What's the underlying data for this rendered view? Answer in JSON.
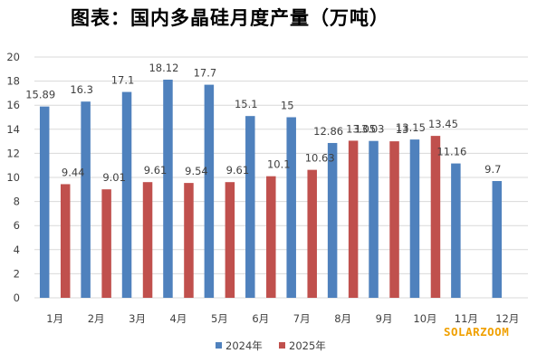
{
  "title": "图表：国内多晶硅月度产量（万吨）",
  "watermark": "SOLARZOOM",
  "colors": {
    "series_2024": "#4f81bd",
    "series_2025": "#c0504d",
    "grid": "#d9d9d9"
  },
  "chart_data": {
    "type": "bar",
    "title": "图表：国内多晶硅月度产量（万吨）",
    "xlabel": "",
    "ylabel": "",
    "categories": [
      "1月",
      "2月",
      "3月",
      "4月",
      "5月",
      "6月",
      "7月",
      "8月",
      "9月",
      "10月",
      "11月",
      "12月"
    ],
    "series": [
      {
        "name": "2024年",
        "values": [
          15.89,
          16.3,
          17.1,
          18.12,
          17.7,
          15.1,
          15,
          12.86,
          13.03,
          13.15,
          11.16,
          9.7
        ],
        "labels": [
          "15.89",
          "16.3",
          "17.1",
          "18.12",
          "17.7",
          "15.1",
          "15",
          "12.86",
          "13.03",
          "13.15",
          "11.16",
          "9.7"
        ]
      },
      {
        "name": "2025年",
        "values": [
          9.44,
          9.01,
          9.61,
          9.54,
          9.61,
          10.1,
          10.63,
          13.05,
          13,
          13.45,
          null,
          null
        ],
        "labels": [
          "9.44",
          "9.01",
          "9.61",
          "9.54",
          "9.61",
          "10.1",
          "10.63",
          "13.05",
          "13",
          "13.45",
          "",
          ""
        ]
      }
    ],
    "yticks": [
      "0",
      "2",
      "4",
      "6",
      "8",
      "10",
      "12",
      "14",
      "16",
      "18",
      "20"
    ],
    "ylim": [
      0,
      20
    ],
    "grid": true,
    "legend": "bottom"
  }
}
